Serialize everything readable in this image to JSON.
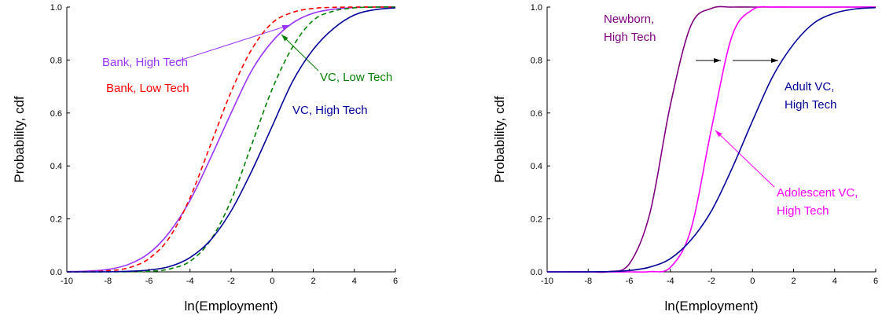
{
  "chart_data": [
    {
      "type": "line",
      "xlabel": "ln(Employment)",
      "ylabel": "Probability, cdf",
      "x": [
        -10,
        -9,
        -8,
        -7,
        -6,
        -5,
        -4,
        -3,
        -2,
        -1,
        0,
        1,
        2,
        3,
        4,
        5,
        6
      ],
      "xlim": [
        -10,
        6
      ],
      "ylim": [
        0,
        1
      ],
      "xticks": [
        -10,
        -8,
        -6,
        -4,
        -2,
        0,
        2,
        4,
        6
      ],
      "yticks": [
        {
          "value": 0,
          "label": "0.0"
        },
        0.2,
        0.4,
        0.6,
        0.8,
        {
          "value": 1,
          "label": "1.0"
        }
      ],
      "series": [
        {
          "name": "Bank, High Tech",
          "color": "#9933ff",
          "dash": false,
          "values": [
            0.001,
            0.003,
            0.009,
            0.028,
            0.07,
            0.15,
            0.27,
            0.43,
            0.6,
            0.76,
            0.87,
            0.94,
            0.977,
            0.992,
            0.998,
            1,
            1
          ]
        },
        {
          "name": "Bank, Low Tech",
          "color": "#ff0000",
          "dash": true,
          "values": [
            0,
            0.001,
            0.004,
            0.015,
            0.05,
            0.13,
            0.28,
            0.48,
            0.68,
            0.84,
            0.94,
            0.98,
            0.995,
            0.999,
            1,
            1,
            1
          ]
        },
        {
          "name": "VC, Low Tech",
          "color": "#008000",
          "dash": true,
          "values": [
            0,
            0,
            0,
            0.0003,
            0.002,
            0.011,
            0.04,
            0.12,
            0.27,
            0.48,
            0.69,
            0.85,
            0.95,
            0.985,
            0.997,
            1,
            1
          ]
        },
        {
          "name": "VC, High Tech",
          "color": "#000099",
          "dash": false,
          "values": [
            0,
            0,
            0.0004,
            0.002,
            0.007,
            0.02,
            0.054,
            0.12,
            0.23,
            0.38,
            0.55,
            0.72,
            0.84,
            0.92,
            0.97,
            0.99,
            0.997
          ]
        }
      ]
    },
    {
      "type": "line",
      "xlabel": "ln(Employment)",
      "ylabel": "Probability, cdf",
      "x": [
        -10,
        -9,
        -8,
        -7,
        -6,
        -5,
        -4,
        -3,
        -2,
        -1,
        0,
        1,
        2,
        3,
        4,
        5,
        6
      ],
      "xlim": [
        -10,
        6
      ],
      "ylim": [
        0,
        1
      ],
      "xticks": [
        -10,
        -8,
        -6,
        -4,
        -2,
        0,
        2,
        4,
        6
      ],
      "yticks": [
        {
          "value": 0,
          "label": "0.0"
        },
        0.2,
        0.4,
        0.6,
        0.8,
        {
          "value": 1,
          "label": "1.0"
        }
      ],
      "series": [
        {
          "name": [
            "Newborn,",
            "High Tech"
          ],
          "color": "#800080",
          "dash": false,
          "values": [
            0,
            0,
            0,
            0.001,
            0.03,
            0.22,
            0.63,
            0.93,
            0.995,
            1,
            1,
            1,
            1,
            1,
            1,
            1,
            1
          ]
        },
        {
          "name": [
            "Adolescent VC,",
            "High Tech"
          ],
          "color": "#ff00ff",
          "dash": false,
          "values": [
            0,
            0,
            0,
            0,
            0,
            0.001,
            0.017,
            0.16,
            0.54,
            0.89,
            0.99,
            1,
            1,
            1,
            1,
            1,
            1
          ]
        },
        {
          "name": [
            "Adult VC,",
            "High Tech"
          ],
          "color": "#000099",
          "dash": false,
          "values": [
            0,
            0,
            0.0003,
            0.001,
            0.005,
            0.018,
            0.05,
            0.12,
            0.23,
            0.39,
            0.57,
            0.74,
            0.86,
            0.94,
            0.977,
            0.993,
            0.998
          ]
        }
      ]
    }
  ]
}
